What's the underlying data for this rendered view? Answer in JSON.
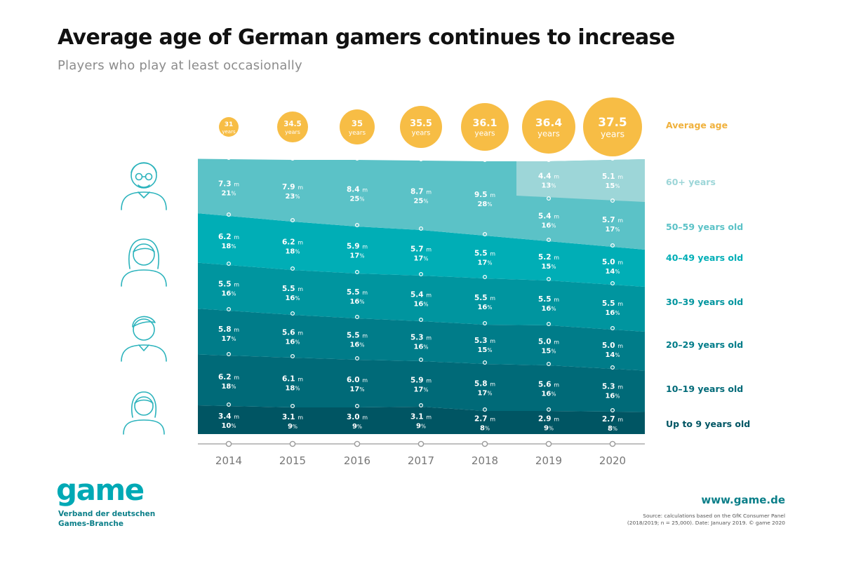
{
  "header": {
    "title": "Average age of German gamers continues to increase",
    "subtitle": "Players who play at least occasionally"
  },
  "chart_data": {
    "type": "area",
    "title": "Average age of German gamers continues to increase",
    "subtitle": "Players who play at least occasionally",
    "x": [
      "2014",
      "2015",
      "2016",
      "2017",
      "2018",
      "2019",
      "2020"
    ],
    "average_age": {
      "label": "Average age",
      "unit": "years",
      "values": [
        "31",
        "34.5",
        "35",
        "35.5",
        "36.1",
        "36.4",
        "37.5"
      ]
    },
    "series_order_bottom_to_top": [
      "Up to 9 years old",
      "10–19 years old",
      "20–29 years old",
      "30–39 years old",
      "40–49 years old",
      "50–59 years old",
      "60+ years"
    ],
    "series": [
      {
        "name": "Up to 9 years old",
        "color": "#005563",
        "values_m": [
          "3.4",
          "3.1",
          "3.0",
          "3.1",
          "2.7",
          "2.9",
          "2.7"
        ],
        "percent": [
          "10",
          "9",
          "9",
          "9",
          "8",
          "9",
          "8"
        ]
      },
      {
        "name": "10–19 years old",
        "color": "#006a78",
        "values_m": [
          "6.2",
          "6.1",
          "6.0",
          "5.9",
          "5.8",
          "5.6",
          "5.3"
        ],
        "percent": [
          "18",
          "18",
          "17",
          "17",
          "17",
          "16",
          "16"
        ]
      },
      {
        "name": "20–29 years old",
        "color": "#007c89",
        "values_m": [
          "5.8",
          "5.6",
          "5.5",
          "5.3",
          "5.3",
          "5.0",
          "5.0"
        ],
        "percent": [
          "17",
          "16",
          "16",
          "16",
          "15",
          "15",
          "14"
        ]
      },
      {
        "name": "30–39 years old",
        "color": "#00959f",
        "values_m": [
          "5.5",
          "5.5",
          "5.5",
          "5.4",
          "5.5",
          "5.5",
          "5.5"
        ],
        "percent": [
          "16",
          "16",
          "16",
          "16",
          "16",
          "16",
          "16"
        ]
      },
      {
        "name": "40–49 years old",
        "color": "#00aeb6",
        "values_m": [
          "6.2",
          "6.2",
          "5.9",
          "5.7",
          "5.5",
          "5.2",
          "5.0"
        ],
        "percent": [
          "18",
          "18",
          "17",
          "17",
          "17",
          "15",
          "14"
        ]
      },
      {
        "name": "50–59 years old",
        "color": "#5bc2c7",
        "values_m": [
          "7.3",
          "7.9",
          "8.4",
          "8.7",
          "9.5",
          "5.4",
          "5.7"
        ],
        "percent": [
          "21",
          "23",
          "25",
          "25",
          "28",
          "16",
          "17"
        ]
      },
      {
        "name": "60+ years",
        "color": "#9dd6d8",
        "values_m": [
          null,
          null,
          null,
          null,
          null,
          "4.4",
          "5.1"
        ],
        "percent": [
          null,
          null,
          null,
          null,
          null,
          "13",
          "15"
        ]
      }
    ],
    "value_suffix": "m",
    "percent_suffix": "%",
    "legend_position": "right",
    "grid": false
  },
  "colors": {
    "bubble": "#f7bd45",
    "accent_orange": "#f0b13c",
    "brand_teal": "#00a9b5",
    "brand_dark_teal": "#0b7f89",
    "axis": "#9a9a9a"
  },
  "icons": [
    "elderly-person-icon",
    "middle-aged-woman-icon",
    "young-man-icon",
    "girl-icon"
  ],
  "footer": {
    "logo": "game",
    "logo_sub_line1": "Verband der deutschen",
    "logo_sub_line2": "Games-Branche",
    "website": "www.game.de",
    "source_line1": "Source: calculations based on the GfK Consumer Panel",
    "source_line2": "(2018/2019; n = 25,000). Date: January 2019. © game 2020"
  }
}
